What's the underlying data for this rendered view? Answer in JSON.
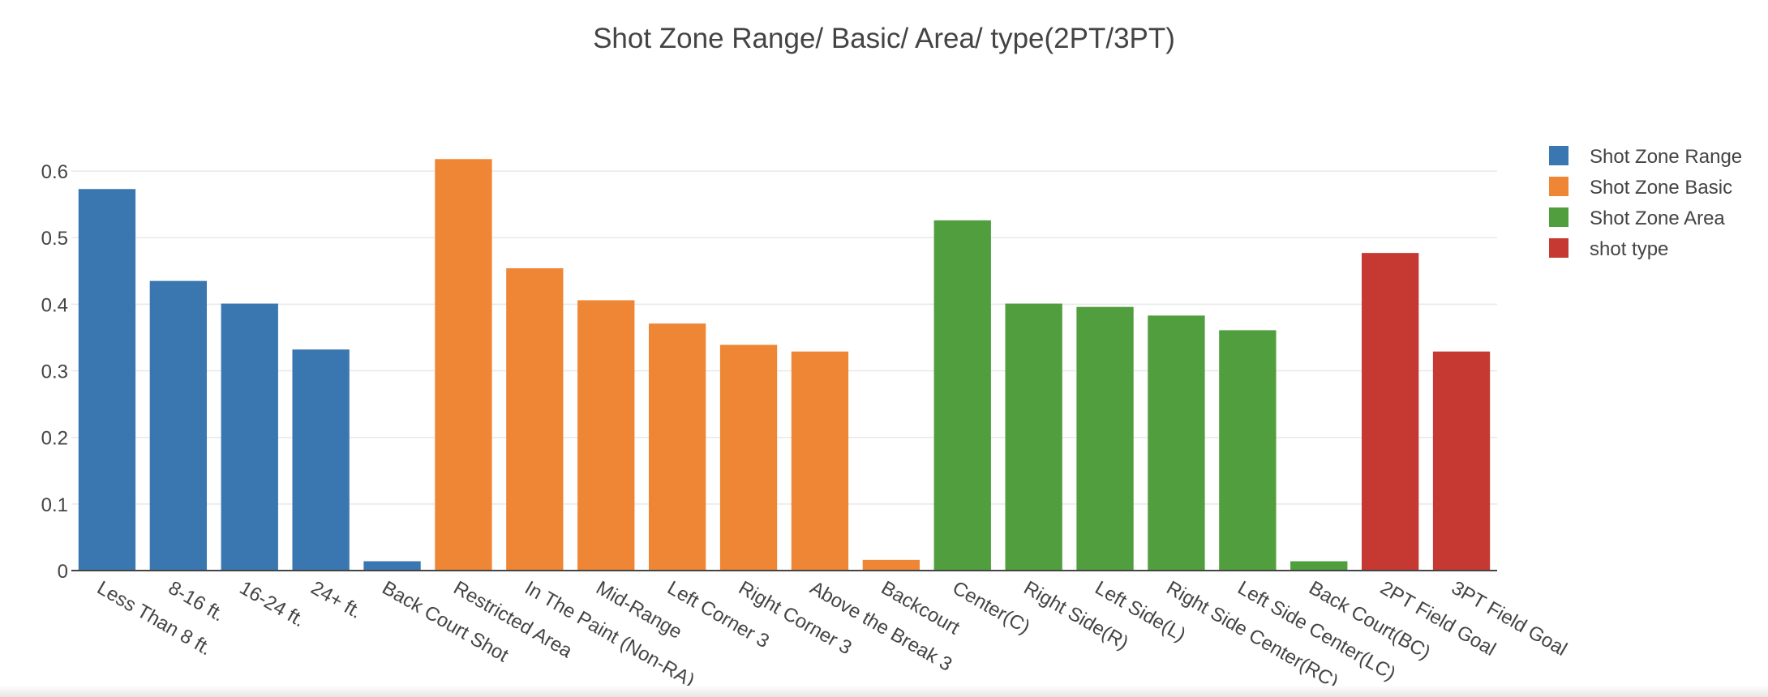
{
  "chart_data": {
    "type": "bar",
    "title": "Shot Zone Range/ Basic/ Area/ type(2PT/3PT)",
    "xlabel": "",
    "ylabel": "",
    "ylim": [
      0,
      0.65
    ],
    "yticks": [
      0,
      0.1,
      0.2,
      0.3,
      0.4,
      0.5,
      0.6
    ],
    "ytick_labels": [
      "0",
      "0.1",
      "0.2",
      "0.3",
      "0.4",
      "0.5",
      "0.6"
    ],
    "grid": true,
    "legend_position": "top-right",
    "series": [
      {
        "name": "Shot Zone Range",
        "color": "#3a76af",
        "categories": [
          "Less Than 8 ft.",
          "8-16 ft.",
          "16-24 ft.",
          "24+ ft.",
          "Back Court Shot"
        ],
        "values": [
          0.573,
          0.435,
          0.401,
          0.332,
          0.014
        ]
      },
      {
        "name": "Shot Zone Basic",
        "color": "#ef8636",
        "categories": [
          "Restricted Area",
          "In The Paint (Non-RA)",
          "Mid-Range",
          "Left Corner 3",
          "Right Corner 3",
          "Above the Break 3",
          "Backcourt"
        ],
        "values": [
          0.618,
          0.454,
          0.406,
          0.371,
          0.339,
          0.329,
          0.016
        ]
      },
      {
        "name": "Shot Zone Area",
        "color": "#519e3e",
        "categories": [
          "Center(C)",
          "Right Side(R)",
          "Left Side(L)",
          "Right Side Center(RC)",
          "Left Side Center(LC)",
          "Back Court(BC)"
        ],
        "values": [
          0.526,
          0.401,
          0.396,
          0.383,
          0.361,
          0.014
        ]
      },
      {
        "name": "shot type",
        "color": "#c53932",
        "categories": [
          "2PT Field Goal",
          "3PT Field Goal"
        ],
        "values": [
          0.477,
          0.329
        ]
      }
    ]
  }
}
